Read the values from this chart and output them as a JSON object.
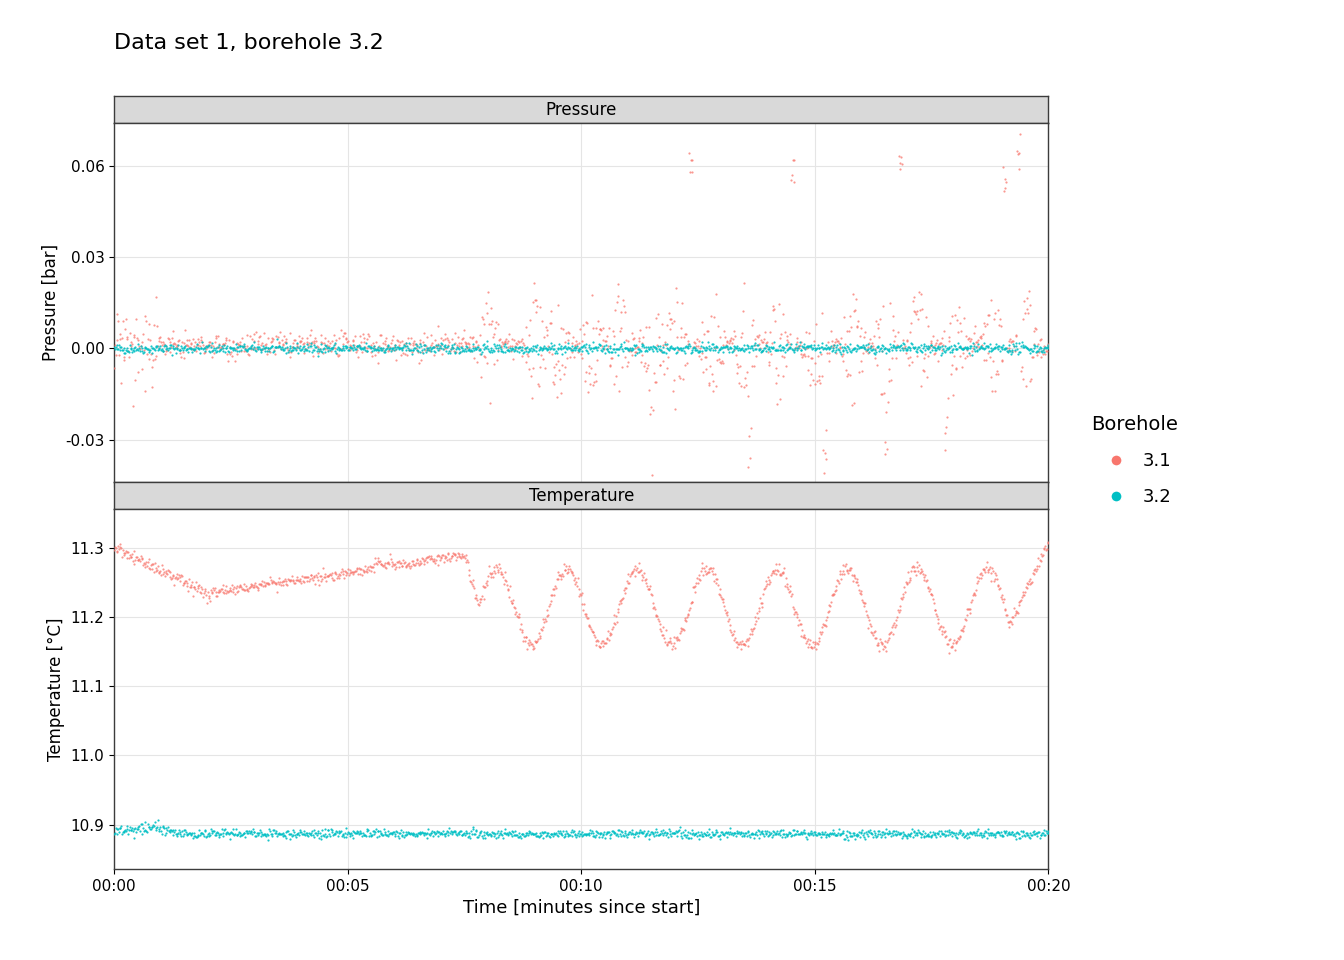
{
  "title": "Data set 1, borehole 3.2",
  "panel1_title": "Pressure",
  "panel2_title": "Temperature",
  "xlabel": "Time [minutes since start]",
  "ylabel1": "Pressure [bar]",
  "ylabel2": "Temperature [°C]",
  "legend_title": "Borehole",
  "legend_labels": [
    "3.1",
    "3.2"
  ],
  "color_31": "#F8766D",
  "color_32": "#00BFC4",
  "panel_bg": "#FFFFFF",
  "strip_bg": "#D9D9D9",
  "strip_border": "#3C3C3C",
  "grid_color": "#E5E5E5",
  "pressure_ylim": [
    -0.044,
    0.074
  ],
  "pressure_yticks": [
    -0.03,
    0.0,
    0.03,
    0.06
  ],
  "temp_ylim": [
    10.836,
    11.356
  ],
  "temp_yticks": [
    10.9,
    11.0,
    11.1,
    11.2,
    11.3
  ],
  "xlim_minutes": [
    0,
    20
  ],
  "xtick_minutes": [
    0,
    5,
    10,
    15,
    20
  ],
  "xtick_labels": [
    "00:00",
    "00:05",
    "00:10",
    "00:15",
    "00:20"
  ],
  "seed": 42
}
